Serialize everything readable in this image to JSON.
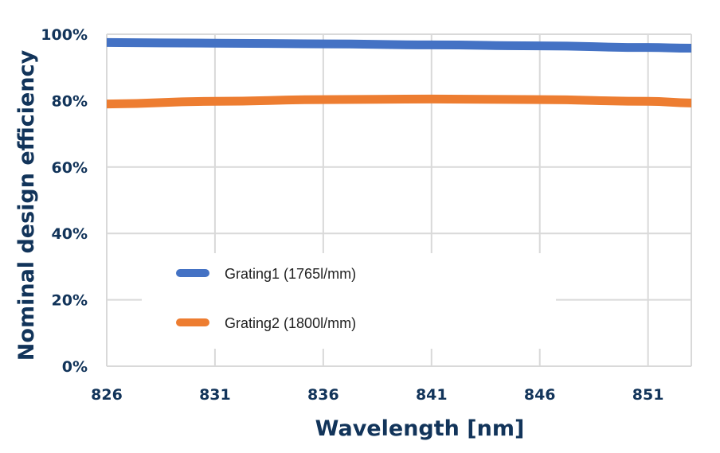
{
  "chart_data": {
    "type": "line",
    "xlabel": "Wavelength [nm]",
    "ylabel": "Nominal design efficiency",
    "x_ticks": [
      "826",
      "831",
      "836",
      "841",
      "846",
      "851"
    ],
    "y_ticks": [
      "0%",
      "20%",
      "40%",
      "60%",
      "80%",
      "100%"
    ],
    "xlim": [
      826,
      853
    ],
    "ylim": [
      0,
      100
    ],
    "grid": true,
    "legend_position": "center-left",
    "series": [
      {
        "name": "Grating1 (1765l/mm)",
        "color": "#4472c4",
        "x": [
          826,
          831,
          836,
          841,
          846,
          851,
          853
        ],
        "y": [
          97.5,
          97.3,
          97.1,
          96.8,
          96.5,
          96.0,
          95.8
        ]
      },
      {
        "name": "Grating2 (1800l/mm)",
        "color": "#ed7d31",
        "x": [
          826,
          831,
          836,
          841,
          846,
          851,
          853
        ],
        "y": [
          79.0,
          79.8,
          80.3,
          80.5,
          80.3,
          79.8,
          79.3
        ]
      }
    ]
  }
}
